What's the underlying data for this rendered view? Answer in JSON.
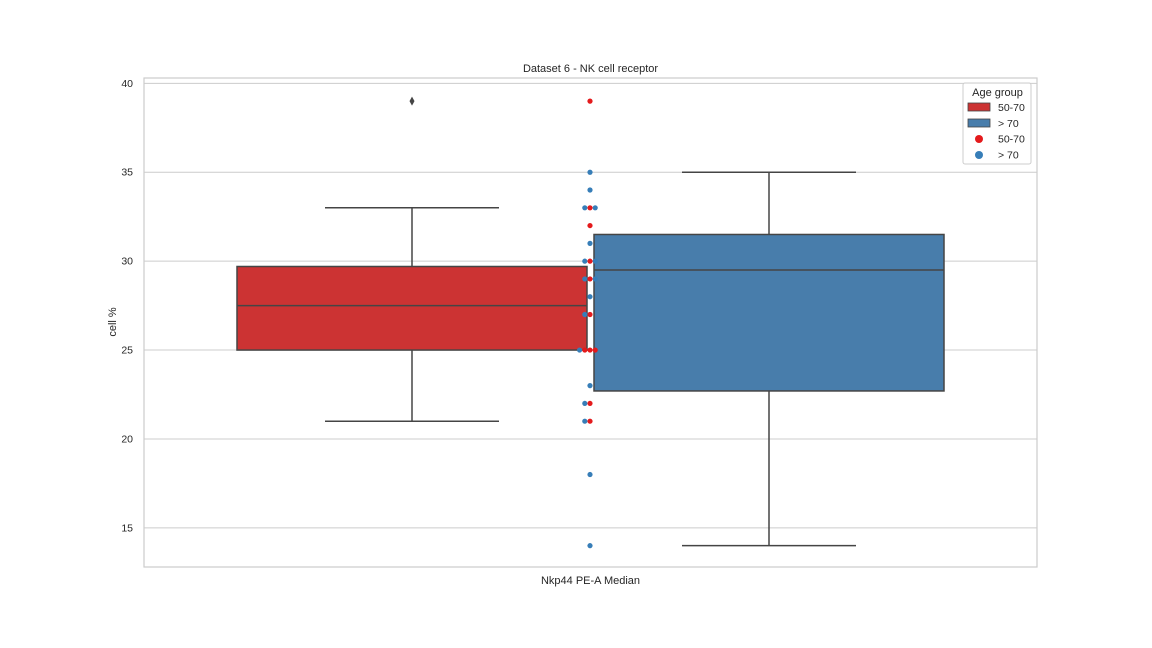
{
  "chart_data": {
    "type": "box",
    "title": "Dataset 6 - NK cell receptor",
    "xlabel": "",
    "ylabel": "cell %",
    "categories": [
      "Nkp44 PE-A Median"
    ],
    "ylim": [
      12.8,
      40.3
    ],
    "yticks": [
      "15",
      "20",
      "25",
      "30",
      "35",
      "40"
    ],
    "ytick_values": [
      15,
      20,
      25,
      30,
      35,
      40
    ],
    "grid": "y",
    "legend": {
      "title": "Age group",
      "placement": "top-right",
      "entries": [
        {
          "label": "50-70",
          "kind": "box"
        },
        {
          "label": "> 70",
          "kind": "box"
        },
        {
          "label": "50-70",
          "kind": "point"
        },
        {
          "label": "> 70",
          "kind": "point"
        }
      ]
    },
    "colors": {
      "50-70_box": "#cc3333",
      "> 70_box": "#487dab",
      "50-70_point": "#e41a1c",
      "> 70_point": "#377eb8",
      "box_line": "#454545",
      "grid": "#cccccc",
      "frame": "#cccccc"
    },
    "series": [
      {
        "name": "50-70",
        "box": {
          "whisker_low": 21,
          "q1": 25,
          "median": 27.5,
          "q3": 29.7,
          "whisker_high": 33
        },
        "outliers": [
          39
        ],
        "points": [
          39,
          33,
          32,
          30,
          29,
          27,
          25,
          25,
          25,
          22,
          21
        ]
      },
      {
        "name": "> 70",
        "box": {
          "whisker_low": 14,
          "q1": 22.7,
          "median": 29.5,
          "q3": 31.5,
          "whisker_high": 35
        },
        "outliers": [],
        "points": [
          35,
          34,
          33,
          33,
          31,
          30,
          30,
          29,
          29,
          28,
          27,
          25,
          23,
          22,
          21,
          18,
          14
        ]
      }
    ]
  }
}
